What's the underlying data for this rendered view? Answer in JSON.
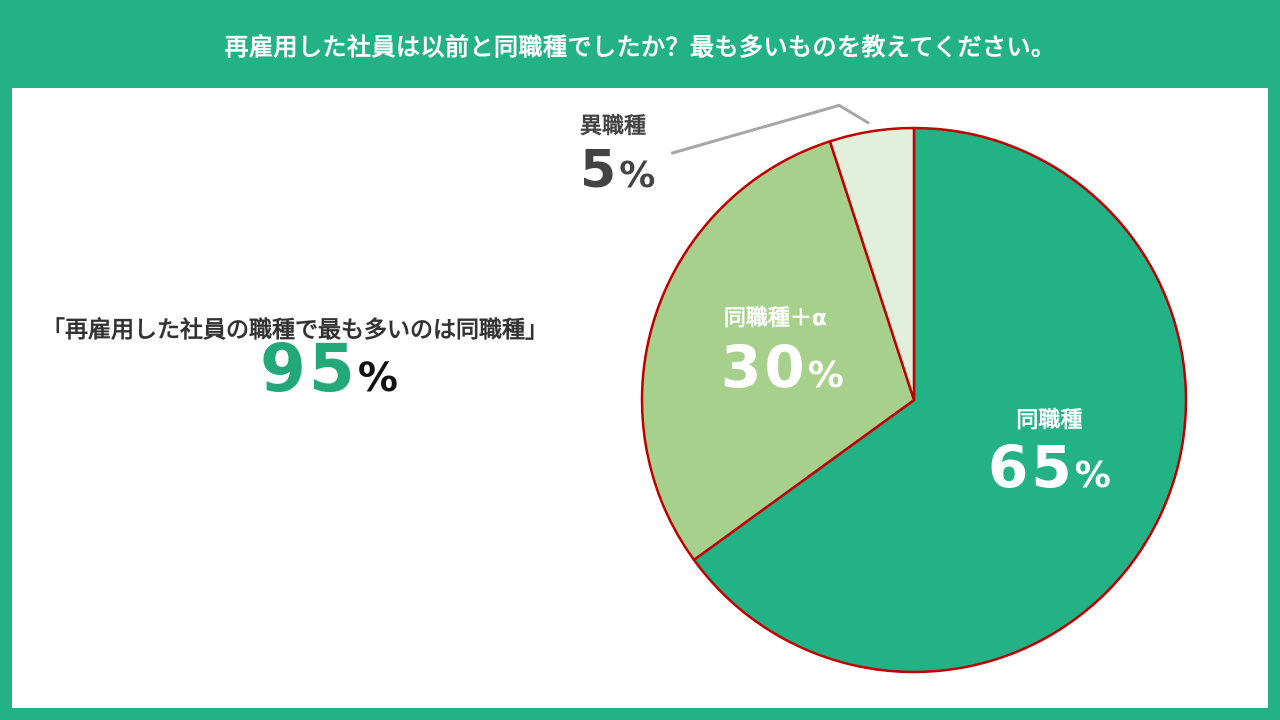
{
  "header": {
    "title": "再雇用した社員は以前と同職種でしたか？最も多いものを教えてください。"
  },
  "summary": {
    "caption": "「再雇用した社員の職種で最も多いのは同職種」",
    "value": "95",
    "unit": "%"
  },
  "chart_data": {
    "type": "pie",
    "title": "再雇用した社員は以前と同職種でしたか？最も多いものを教えてください。",
    "slices": [
      {
        "label": "同職種",
        "value": 65,
        "value_text": "65",
        "unit": "%",
        "color": "#22b286",
        "text_color": "#ffffff"
      },
      {
        "label": "同職種＋α",
        "value": 30,
        "value_text": "30",
        "unit": "%",
        "color": "#a8d08d",
        "text_color": "#ffffff"
      },
      {
        "label": "異職種",
        "value": 5,
        "value_text": "5",
        "unit": "%",
        "color": "#e2efda",
        "text_color": "#444444"
      }
    ],
    "start": "12 o'clock",
    "direction": "clockwise",
    "border_color": "#c00000",
    "leader_line_color": "#a6a6a6"
  }
}
